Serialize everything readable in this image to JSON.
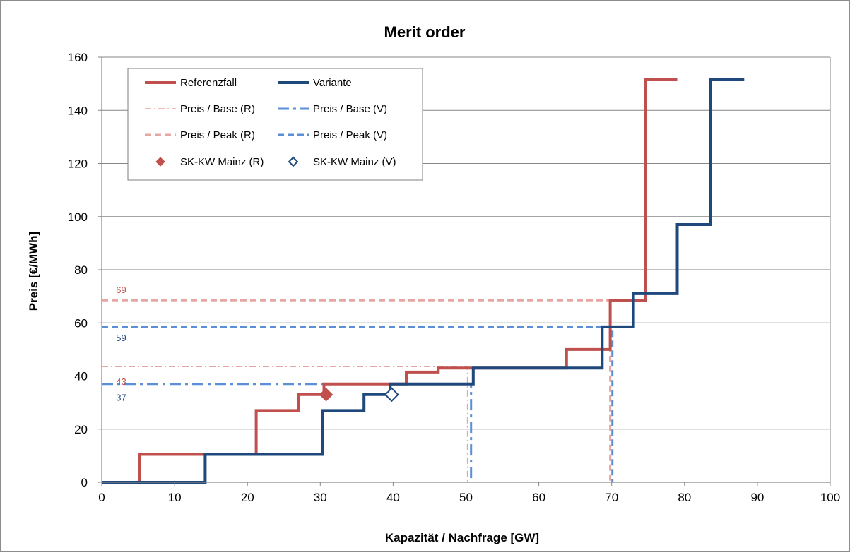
{
  "chart_data": {
    "type": "line",
    "title": "Merit order",
    "xlabel": "Kapazität / Nachfrage [GW]",
    "ylabel": "Preis [€/MWh]",
    "xlim": [
      0,
      100
    ],
    "ylim": [
      0,
      160
    ],
    "xticks": [
      "0",
      "10",
      "20",
      "30",
      "40",
      "50",
      "60",
      "70",
      "80",
      "90",
      "100"
    ],
    "yticks": [
      "0",
      "20",
      "40",
      "60",
      "80",
      "100",
      "120",
      "140",
      "160"
    ],
    "grid": "horizontal",
    "legend_position": "top-left",
    "colors": {
      "referenz": "#c0504d",
      "variante": "#1f497d",
      "base_r": "#e6a6a4",
      "peak_r": "#e6a6a4",
      "base_v": "#5b8fd6",
      "peak_v": "#5b8fd6",
      "grid": "#868686"
    },
    "series": [
      {
        "name": "Referenzfall",
        "style": "step",
        "color": "#c0504d",
        "points": [
          [
            0,
            0
          ],
          [
            5.2,
            0
          ],
          [
            5.2,
            10.5
          ],
          [
            21.2,
            10.5
          ],
          [
            21.2,
            27
          ],
          [
            27,
            27
          ],
          [
            27,
            33
          ],
          [
            30.5,
            33
          ],
          [
            30.5,
            37
          ],
          [
            41.8,
            37
          ],
          [
            41.8,
            41.5
          ],
          [
            46.2,
            41.5
          ],
          [
            46.2,
            43
          ],
          [
            63.8,
            43
          ],
          [
            63.8,
            50
          ],
          [
            69.8,
            50
          ],
          [
            69.8,
            68.5
          ],
          [
            74.6,
            68.5
          ],
          [
            74.6,
            151.5
          ],
          [
            79,
            151.5
          ]
        ]
      },
      {
        "name": "Variante",
        "style": "step",
        "color": "#1f497d",
        "points": [
          [
            0,
            0
          ],
          [
            14.2,
            0
          ],
          [
            14.2,
            10.5
          ],
          [
            30.3,
            10.5
          ],
          [
            30.3,
            27
          ],
          [
            36,
            27
          ],
          [
            36,
            33
          ],
          [
            39.6,
            33
          ],
          [
            39.6,
            37
          ],
          [
            51,
            37
          ],
          [
            51,
            43
          ],
          [
            68.7,
            43
          ],
          [
            68.7,
            58.5
          ],
          [
            73,
            58.5
          ],
          [
            73,
            71
          ],
          [
            79,
            71
          ],
          [
            79,
            97
          ],
          [
            83.6,
            97
          ],
          [
            83.6,
            151.5
          ],
          [
            88.2,
            151.5
          ]
        ]
      },
      {
        "name": "Preis / Base (R)",
        "style": "dashdot-thin",
        "color": "#e6a6a4",
        "points": [
          [
            0,
            43.5
          ],
          [
            50.2,
            43.5
          ],
          [
            50.2,
            0
          ]
        ]
      },
      {
        "name": "Preis / Base (V)",
        "style": "dashdot-thick",
        "color": "#5b8fd6",
        "points": [
          [
            0,
            37
          ],
          [
            50.7,
            37
          ],
          [
            50.7,
            0
          ]
        ]
      },
      {
        "name": "Preis / Peak (R)",
        "style": "dashed",
        "color": "#e6a6a4",
        "points": [
          [
            0,
            68.5
          ],
          [
            69.8,
            68.5
          ],
          [
            69.8,
            0
          ]
        ]
      },
      {
        "name": "Preis / Peak (V)",
        "style": "dashed",
        "color": "#5b8fd6",
        "points": [
          [
            0,
            58.5
          ],
          [
            70.1,
            58.5
          ],
          [
            70.1,
            0
          ]
        ]
      },
      {
        "name": "SK-KW Mainz (R)",
        "style": "marker-filled",
        "color": "#c0504d",
        "points": [
          [
            30.8,
            33
          ]
        ]
      },
      {
        "name": "SK-KW Mainz (V)",
        "style": "marker-open",
        "color": "#1f497d",
        "points": [
          [
            39.8,
            33
          ]
        ]
      }
    ],
    "annotations": [
      {
        "text": "69",
        "x": 1,
        "y": 72.5,
        "color": "#c0504d"
      },
      {
        "text": "59",
        "x": 1,
        "y": 54.5,
        "color": "#1f497d"
      },
      {
        "text": "43",
        "x": 1,
        "y": 38,
        "color": "#c0504d"
      },
      {
        "text": "37",
        "x": 1,
        "y": 32,
        "color": "#1f497d"
      }
    ],
    "legend": [
      [
        "Referenzfall",
        "Variante"
      ],
      [
        "Preis / Base (R)",
        "Preis / Base (V)"
      ],
      [
        "Preis / Peak (R)",
        "Preis / Peak (V)"
      ],
      [
        "SK-KW Mainz (R)",
        "SK-KW Mainz (V)"
      ]
    ]
  }
}
